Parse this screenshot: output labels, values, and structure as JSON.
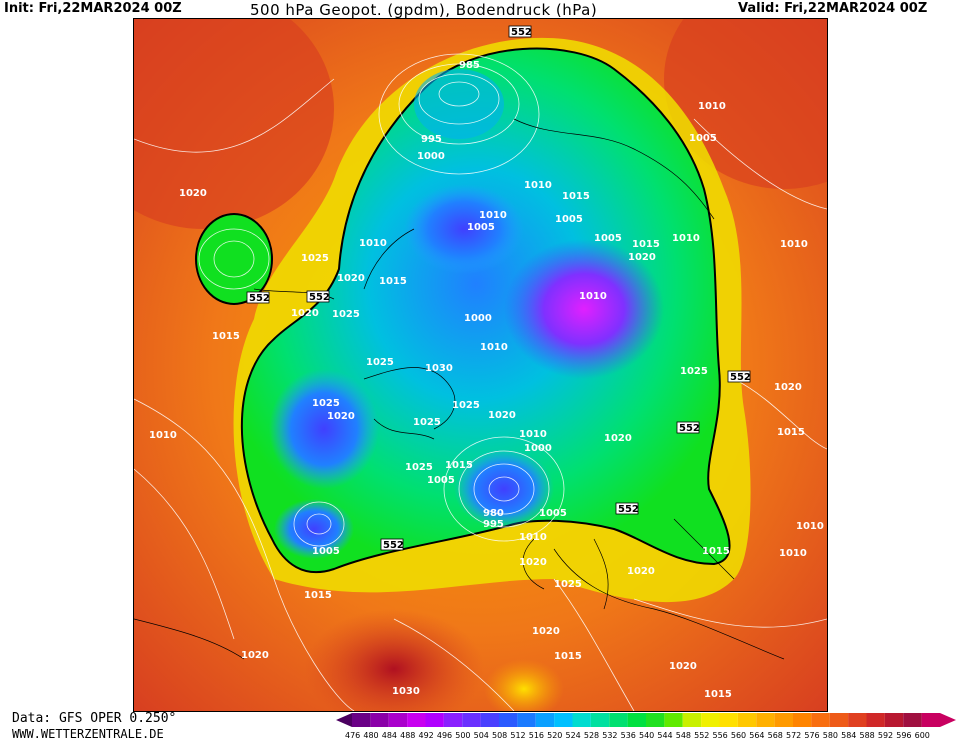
{
  "header": {
    "init": "Init: Fri,22MAR2024 00Z",
    "title": "500 hPa Geopot. (gpdm), Bodendruck (hPa)",
    "valid": "Valid: Fri,22MAR2024 00Z"
  },
  "footer": {
    "data_source": "Data: GFS OPER 0.250°",
    "url": "WWW.WETTERZENTRALE.DE"
  },
  "legend": {
    "values": [
      "476",
      "480",
      "484",
      "488",
      "492",
      "496",
      "500",
      "504",
      "508",
      "512",
      "516",
      "520",
      "524",
      "528",
      "532",
      "536",
      "540",
      "544",
      "548",
      "552",
      "556",
      "560",
      "564",
      "568",
      "572",
      "576",
      "580",
      "584",
      "588",
      "592",
      "596",
      "600"
    ],
    "colors": [
      "#4b0060",
      "#6a0086",
      "#8a00a8",
      "#aa00cc",
      "#c800f0",
      "#b000ff",
      "#8a20ff",
      "#6a30ff",
      "#4a40ff",
      "#2a5aff",
      "#1a7aff",
      "#0aa0ff",
      "#00c0ff",
      "#00dcd0",
      "#00e0a0",
      "#00e070",
      "#00e040",
      "#20e020",
      "#60ea00",
      "#c8f000",
      "#f0f000",
      "#ffe000",
      "#ffc800",
      "#ffb000",
      "#ff9a00",
      "#ff8400",
      "#f86e10",
      "#ee5a18",
      "#e04020",
      "#d02828",
      "#b81830",
      "#a01040",
      "#c80060"
    ]
  },
  "isobars": [
    {
      "t": "985"
    },
    {
      "t": "995"
    },
    {
      "t": "1000"
    },
    {
      "t": "1010"
    },
    {
      "t": "1015"
    },
    {
      "t": "1005"
    },
    {
      "t": "1010"
    },
    {
      "t": "1005"
    },
    {
      "t": "1005"
    },
    {
      "t": "1015"
    },
    {
      "t": "1010"
    },
    {
      "t": "1020"
    },
    {
      "t": "1010"
    },
    {
      "t": "1010"
    },
    {
      "t": "1005"
    },
    {
      "t": "1020"
    },
    {
      "t": "1025"
    },
    {
      "t": "1020"
    },
    {
      "t": "1015"
    },
    {
      "t": "1010"
    },
    {
      "t": "1020"
    },
    {
      "t": "1025"
    },
    {
      "t": "1015"
    },
    {
      "t": "1000"
    },
    {
      "t": "1010"
    },
    {
      "t": "1025"
    },
    {
      "t": "1030"
    },
    {
      "t": "1025"
    },
    {
      "t": "1020"
    },
    {
      "t": "1010"
    },
    {
      "t": "1025"
    },
    {
      "t": "1025"
    },
    {
      "t": "1020"
    },
    {
      "t": "1010"
    },
    {
      "t": "1000"
    },
    {
      "t": "1025"
    },
    {
      "t": "1015"
    },
    {
      "t": "1005"
    },
    {
      "t": "980"
    },
    {
      "t": "995"
    },
    {
      "t": "1005"
    },
    {
      "t": "1010"
    },
    {
      "t": "1020"
    },
    {
      "t": "1005"
    },
    {
      "t": "1015"
    },
    {
      "t": "1025"
    },
    {
      "t": "1020"
    },
    {
      "t": "1015"
    },
    {
      "t": "1020"
    },
    {
      "t": "1030"
    },
    {
      "t": "1020"
    },
    {
      "t": "1015"
    },
    {
      "t": "1020"
    },
    {
      "t": "1015"
    },
    {
      "t": "1010"
    },
    {
      "t": "1010"
    },
    {
      "t": "1015"
    },
    {
      "t": "1010"
    },
    {
      "t": "1020"
    },
    {
      "t": "1025"
    },
    {
      "t": "1020"
    }
  ],
  "contour_label": "552"
}
